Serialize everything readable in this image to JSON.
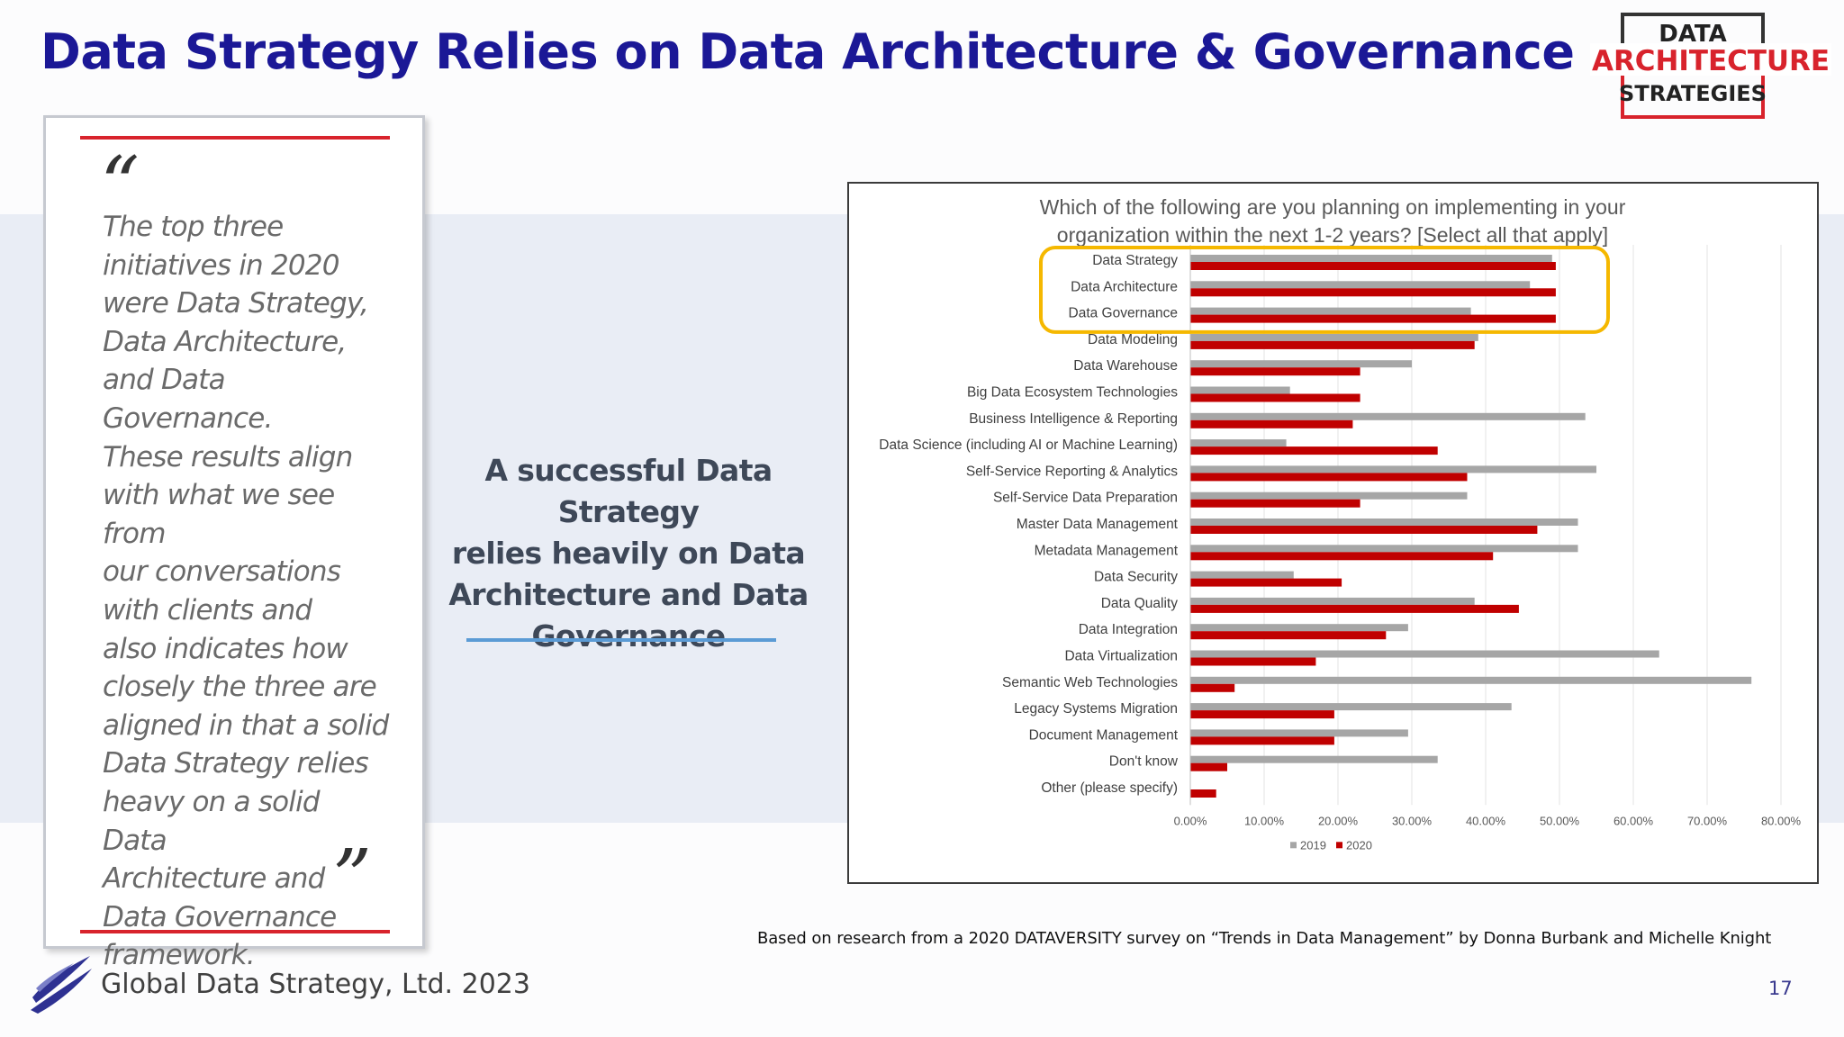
{
  "slide": {
    "title": "Data Strategy Relies on Data Architecture & Governance",
    "logo": {
      "line1": "DATA",
      "line2": "ARCHITECTURE",
      "line3": "STRATEGIES"
    },
    "quote": {
      "open": "“",
      "close": "”",
      "text": "The top three\ninitiatives in 2020\nwere Data Strategy,\nData Architecture,\nand Data Governance.\nThese results align\nwith what we see from\nour conversations\nwith clients and\nalso indicates how\nclosely the three are\naligned in that a solid\nData Strategy relies\nheavy on a solid Data\nArchitecture and\nData Governance\nframework."
    },
    "callout": "A successful Data Strategy\nrelies heavily on Data\nArchitecture and Data\nGovernance",
    "source": "Based on research from a 2020 DATAVERSITY survey on “Trends in Data Management” by Donna Burbank and Michelle Knight",
    "footer": "Global Data Strategy, Ltd. 2023",
    "page_number": "17"
  },
  "colors": {
    "title": "#1b1896",
    "accent_red": "#d8232c",
    "series_2019": "#a6a6a6",
    "series_2020": "#c00000",
    "highlight": "#f5b800"
  },
  "chart_data": {
    "type": "bar",
    "orientation": "horizontal",
    "title": "Which of the following are you planning on implementing in your organization within the next 1-2 years? [Select all that apply]",
    "categories": [
      "Data Strategy",
      "Data Architecture",
      "Data Governance",
      "Data Modeling",
      "Data Warehouse",
      "Big Data Ecosystem Technologies",
      "Business Intelligence & Reporting",
      "Data Science (including AI or Machine Learning)",
      "Self-Service Reporting & Analytics",
      "Self-Service Data Preparation",
      "Master Data Management",
      "Metadata Management",
      "Data Security",
      "Data Quality",
      "Data Integration",
      "Data Virtualization",
      "Semantic Web Technologies",
      "Legacy Systems Migration",
      "Document Management",
      "Don't know",
      "Other (please specify)"
    ],
    "series": [
      {
        "name": "2019",
        "color": "#a6a6a6",
        "values": [
          49.0,
          46.0,
          38.0,
          39.0,
          30.0,
          13.5,
          53.5,
          13.0,
          55.0,
          37.5,
          52.5,
          52.5,
          14.0,
          38.5,
          29.5,
          63.5,
          76.0,
          43.5,
          29.5,
          33.5,
          0.0
        ]
      },
      {
        "name": "2020",
        "color": "#c00000",
        "values": [
          49.5,
          49.5,
          49.5,
          38.5,
          23.0,
          23.0,
          22.0,
          33.5,
          37.5,
          23.0,
          47.0,
          41.0,
          20.5,
          44.5,
          26.5,
          17.0,
          6.0,
          19.5,
          19.5,
          5.0,
          3.5
        ]
      }
    ],
    "x_ticks": [
      "0.00%",
      "10.00%",
      "20.00%",
      "30.00%",
      "40.00%",
      "50.00%",
      "60.00%",
      "70.00%",
      "80.00%"
    ],
    "xlim": [
      0,
      80
    ],
    "grid": true,
    "legend": "bottom",
    "highlighted_categories": [
      "Data Strategy",
      "Data Architecture",
      "Data Governance"
    ]
  }
}
